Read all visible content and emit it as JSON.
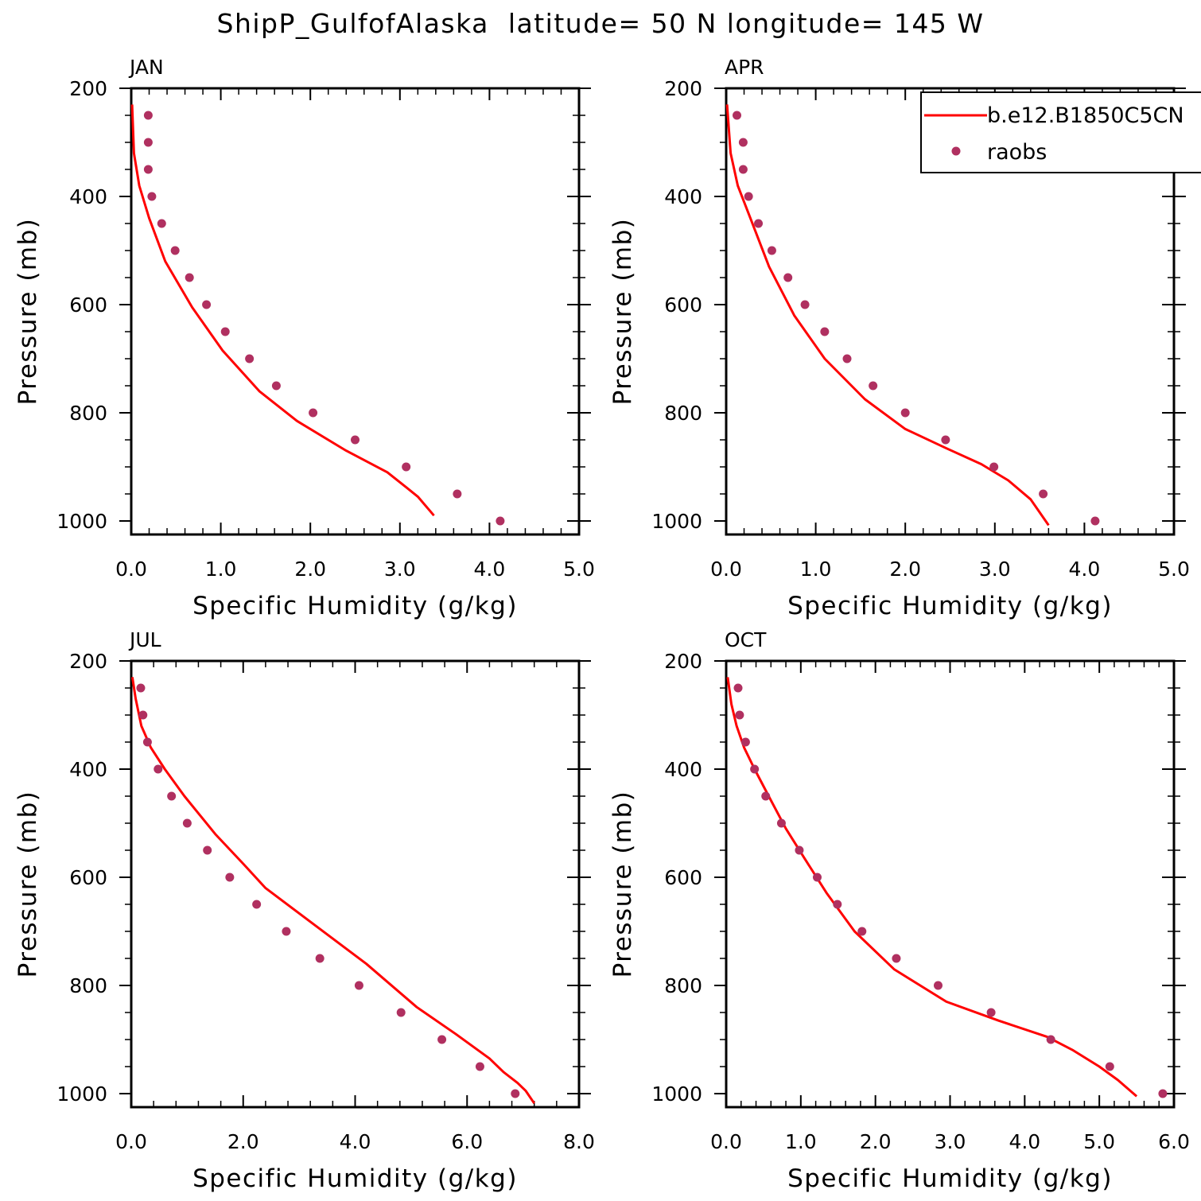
{
  "figure_title": "ShipP_GulfofAlaska  latitude= 50 N longitude= 145 W",
  "colors": {
    "model_line": "#ff0000",
    "raobs_marker": "#b03060",
    "axes": "#000000"
  },
  "legend": {
    "placement": "top-right of APR panel",
    "entries": [
      {
        "label": "b.e12.B1850C5CN",
        "style": "line",
        "color": "#ff0000"
      },
      {
        "label": "raobs",
        "style": "marker",
        "color": "#b03060"
      }
    ]
  },
  "chart_data": [
    {
      "type": "line",
      "title": "JAN",
      "xlabel": "Specific Humidity (g/kg)",
      "ylabel": "Pressure (mb)",
      "xlim": [
        0,
        5
      ],
      "ylim": [
        200,
        1025
      ],
      "y_inverted": true,
      "xticks": [
        0,
        1,
        2,
        3,
        4,
        5
      ],
      "xtick_labels": [
        "0.0",
        "1.0",
        "2.0",
        "3.0",
        "4.0",
        "5.0"
      ],
      "yticks": [
        200,
        400,
        600,
        800,
        1000
      ],
      "ytick_labels": [
        "200",
        "400",
        "600",
        "800",
        "1000"
      ],
      "series": [
        {
          "name": "b.e12.B1850C5CN",
          "kind": "line",
          "x": [
            0.01,
            0.03,
            0.09,
            0.2,
            0.38,
            0.68,
            1.02,
            1.43,
            1.85,
            2.4,
            2.86,
            3.05,
            3.2,
            3.38
          ],
          "y": [
            230,
            320,
            380,
            440,
            520,
            605,
            685,
            760,
            815,
            870,
            910,
            935,
            955,
            990
          ]
        },
        {
          "name": "raobs",
          "kind": "scatter",
          "x": [
            0.19,
            0.19,
            0.19,
            0.23,
            0.34,
            0.49,
            0.65,
            0.84,
            1.05,
            1.32,
            1.62,
            2.03,
            2.5,
            3.07,
            3.64,
            4.12
          ],
          "y": [
            250,
            300,
            350,
            400,
            450,
            500,
            550,
            600,
            650,
            700,
            750,
            800,
            850,
            900,
            950,
            1000
          ]
        }
      ]
    },
    {
      "type": "line",
      "title": "APR",
      "xlabel": "Specific Humidity (g/kg)",
      "ylabel": "Pressure (mb)",
      "xlim": [
        0,
        5
      ],
      "ylim": [
        200,
        1025
      ],
      "y_inverted": true,
      "xticks": [
        0,
        1,
        2,
        3,
        4,
        5
      ],
      "xtick_labels": [
        "0.0",
        "1.0",
        "2.0",
        "3.0",
        "4.0",
        "5.0"
      ],
      "yticks": [
        200,
        400,
        600,
        800,
        1000
      ],
      "ytick_labels": [
        "200",
        "400",
        "600",
        "800",
        "1000"
      ],
      "series": [
        {
          "name": "b.e12.B1850C5CN",
          "kind": "line",
          "x": [
            0.01,
            0.05,
            0.13,
            0.27,
            0.48,
            0.76,
            1.1,
            1.55,
            2.0,
            2.45,
            2.85,
            3.15,
            3.4,
            3.6
          ],
          "y": [
            230,
            320,
            380,
            440,
            530,
            620,
            700,
            775,
            830,
            865,
            895,
            925,
            960,
            1008
          ]
        },
        {
          "name": "raobs",
          "kind": "scatter",
          "x": [
            0.12,
            0.19,
            0.19,
            0.25,
            0.36,
            0.51,
            0.69,
            0.88,
            1.1,
            1.35,
            1.64,
            2.0,
            2.45,
            2.99,
            3.54,
            4.12
          ],
          "y": [
            250,
            300,
            350,
            400,
            450,
            500,
            550,
            600,
            650,
            700,
            750,
            800,
            850,
            900,
            950,
            1000
          ]
        }
      ]
    },
    {
      "type": "line",
      "title": "JUL",
      "xlabel": "Specific Humidity (g/kg)",
      "ylabel": "Pressure (mb)",
      "xlim": [
        0,
        8
      ],
      "ylim": [
        200,
        1025
      ],
      "y_inverted": true,
      "xticks": [
        0,
        2,
        4,
        6,
        8
      ],
      "xtick_labels": [
        "0.0",
        "2.0",
        "4.0",
        "6.0",
        "8.0"
      ],
      "yticks": [
        200,
        400,
        600,
        800,
        1000
      ],
      "ytick_labels": [
        "200",
        "400",
        "600",
        "800",
        "1000"
      ],
      "series": [
        {
          "name": "b.e12.B1850C5CN",
          "kind": "line",
          "x": [
            0.02,
            0.08,
            0.18,
            0.35,
            0.6,
            0.95,
            1.5,
            2.0,
            2.4,
            3.3,
            4.2,
            5.1,
            5.8,
            6.4,
            6.65,
            6.9,
            7.05,
            7.2
          ],
          "y": [
            230,
            270,
            320,
            360,
            400,
            450,
            520,
            575,
            620,
            690,
            760,
            840,
            890,
            935,
            960,
            980,
            995,
            1018
          ]
        },
        {
          "name": "raobs",
          "kind": "scatter",
          "x": [
            0.17,
            0.21,
            0.29,
            0.48,
            0.72,
            1.0,
            1.36,
            1.76,
            2.24,
            2.77,
            3.37,
            4.07,
            4.82,
            5.55,
            6.23,
            6.86
          ],
          "y": [
            250,
            300,
            350,
            400,
            450,
            500,
            550,
            600,
            650,
            700,
            750,
            800,
            850,
            900,
            950,
            1000
          ]
        }
      ]
    },
    {
      "type": "line",
      "title": "OCT",
      "xlabel": "Specific Humidity (g/kg)",
      "ylabel": "Pressure (mb)",
      "xlim": [
        0,
        6
      ],
      "ylim": [
        200,
        1025
      ],
      "y_inverted": true,
      "xticks": [
        0,
        1,
        2,
        3,
        4,
        5,
        6
      ],
      "xtick_labels": [
        "0.0",
        "1.0",
        "2.0",
        "3.0",
        "4.0",
        "5.0",
        "6.0"
      ],
      "yticks": [
        200,
        400,
        600,
        800,
        1000
      ],
      "ytick_labels": [
        "200",
        "400",
        "600",
        "800",
        "1000"
      ],
      "series": [
        {
          "name": "b.e12.B1850C5CN",
          "kind": "line",
          "x": [
            0.02,
            0.07,
            0.14,
            0.24,
            0.38,
            0.57,
            0.8,
            1.05,
            1.35,
            1.72,
            2.25,
            2.95,
            3.65,
            4.3,
            4.65,
            5.0,
            5.25,
            5.5
          ],
          "y": [
            230,
            280,
            320,
            360,
            400,
            450,
            510,
            565,
            630,
            700,
            770,
            830,
            865,
            895,
            920,
            950,
            975,
            1005
          ]
        },
        {
          "name": "raobs",
          "kind": "scatter",
          "x": [
            0.16,
            0.18,
            0.26,
            0.38,
            0.53,
            0.74,
            0.98,
            1.22,
            1.49,
            1.82,
            2.28,
            2.84,
            3.55,
            4.35,
            5.14,
            5.85
          ],
          "y": [
            250,
            300,
            350,
            400,
            450,
            500,
            550,
            600,
            650,
            700,
            750,
            800,
            850,
            900,
            950,
            1000
          ]
        }
      ]
    }
  ]
}
